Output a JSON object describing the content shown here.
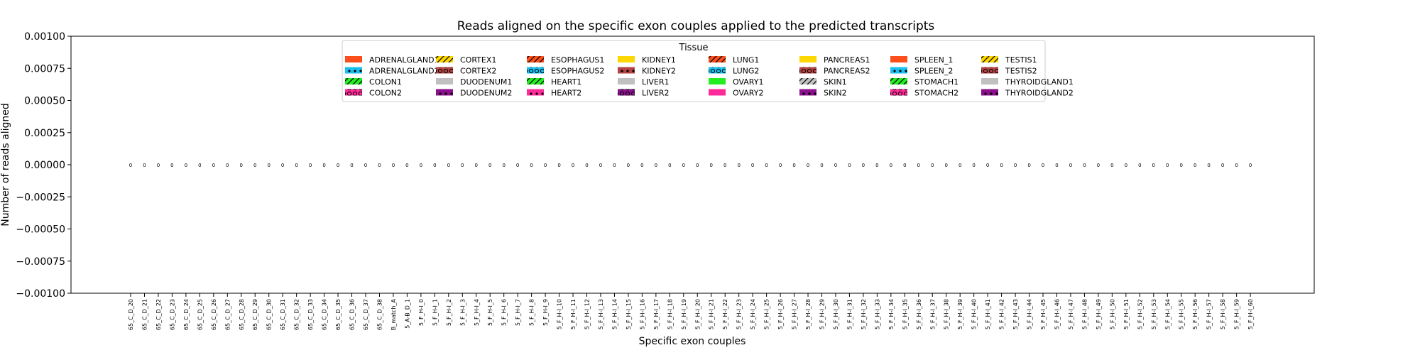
{
  "chart_data": {
    "type": "bar",
    "title": "Reads aligned on the specific exon couples applied to the predicted transcripts",
    "xlabel": "Specific exon couples",
    "ylabel": "Number of reads aligned",
    "ylim": [
      -0.001,
      0.001
    ],
    "yticks": [
      "0.00100",
      "0.00075",
      "0.00050",
      "0.00025",
      "0.00000",
      "−0.00025",
      "−0.00050",
      "−0.00075",
      "−0.00100"
    ],
    "ytick_values": [
      0.001,
      0.00075,
      0.0005,
      0.00025,
      0,
      -0.00025,
      -0.0005,
      -0.00075,
      -0.001
    ],
    "grid": false,
    "legend": {
      "title": "Tissue",
      "placement": "top-center",
      "entries": [
        {
          "name": "ADRENALGLAND1",
          "color": "#fc4f1b",
          "hatch": "none"
        },
        {
          "name": "ADRENALGLAND2",
          "color": "#19c0ef",
          "hatch": "dots"
        },
        {
          "name": "COLON1",
          "color": "#22ee22",
          "hatch": "slash"
        },
        {
          "name": "COLON2",
          "color": "#ff2a9a",
          "hatch": "circles"
        },
        {
          "name": "CORTEX1",
          "color": "#ffd700",
          "hatch": "slash"
        },
        {
          "name": "CORTEX2",
          "color": "#b44444",
          "hatch": "circles"
        },
        {
          "name": "DUODENUM1",
          "color": "#c0c0c0",
          "hatch": "none"
        },
        {
          "name": "DUODENUM2",
          "color": "#8b108b",
          "hatch": "dots"
        },
        {
          "name": "ESOPHAGUS1",
          "color": "#fc4f1b",
          "hatch": "slash"
        },
        {
          "name": "ESOPHAGUS2",
          "color": "#19c0ef",
          "hatch": "circles"
        },
        {
          "name": "HEART1",
          "color": "#22ee22",
          "hatch": "slash"
        },
        {
          "name": "HEART2",
          "color": "#ff2a9a",
          "hatch": "dots"
        },
        {
          "name": "KIDNEY1",
          "color": "#ffd700",
          "hatch": "none"
        },
        {
          "name": "KIDNEY2",
          "color": "#b44444",
          "hatch": "dots"
        },
        {
          "name": "LIVER1",
          "color": "#c0c0c0",
          "hatch": "none"
        },
        {
          "name": "LIVER2",
          "color": "#8b108b",
          "hatch": "circles"
        },
        {
          "name": "LUNG1",
          "color": "#fc4f1b",
          "hatch": "slash"
        },
        {
          "name": "LUNG2",
          "color": "#19c0ef",
          "hatch": "circles"
        },
        {
          "name": "OVARY1",
          "color": "#22ee22",
          "hatch": "none"
        },
        {
          "name": "OVARY2",
          "color": "#ff2a9a",
          "hatch": "none"
        },
        {
          "name": "PANCREAS1",
          "color": "#ffd700",
          "hatch": "none"
        },
        {
          "name": "PANCREAS2",
          "color": "#b44444",
          "hatch": "circles"
        },
        {
          "name": "SKIN1",
          "color": "#c0c0c0",
          "hatch": "slash"
        },
        {
          "name": "SKIN2",
          "color": "#8b108b",
          "hatch": "dots"
        },
        {
          "name": "SPLEEN_1",
          "color": "#fc4f1b",
          "hatch": "none"
        },
        {
          "name": "SPLEEN_2",
          "color": "#19c0ef",
          "hatch": "dots"
        },
        {
          "name": "STOMACH1",
          "color": "#22ee22",
          "hatch": "slash"
        },
        {
          "name": "STOMACH2",
          "color": "#ff2a9a",
          "hatch": "circles"
        },
        {
          "name": "TESTIS1",
          "color": "#ffd700",
          "hatch": "slash"
        },
        {
          "name": "TESTIS2",
          "color": "#b44444",
          "hatch": "circles"
        },
        {
          "name": "THYROIDGLAND1",
          "color": "#c0c0c0",
          "hatch": "none"
        },
        {
          "name": "THYROIDGLAND2",
          "color": "#8b108b",
          "hatch": "dots"
        }
      ]
    },
    "categories": [
      "65_C_D_20",
      "65_C_D_21",
      "65_C_D_22",
      "65_C_D_23",
      "65_C_D_24",
      "65_C_D_25",
      "65_C_D_26",
      "65_C_D_27",
      "65_C_D_28",
      "65_C_D_29",
      "65_C_D_30",
      "65_C_D_31",
      "65_C_D_32",
      "65_C_D_33",
      "65_C_D_34",
      "65_C_D_35",
      "65_C_D_36",
      "65_C_D_37",
      "65_C_D_38",
      "B_match_A",
      "5_A-B_D_1",
      "5_F_H-I_0",
      "5_F_H-I_1",
      "5_F_H-I_2",
      "5_F_H-I_3",
      "5_F_H-I_4",
      "5_F_H-I_5",
      "5_F_H-I_6",
      "5_F_H-I_7",
      "5_F_H-I_8",
      "5_F_H-I_9",
      "5_F_H-I_10",
      "5_F_H-I_11",
      "5_F_H-I_12",
      "5_F_H-I_13",
      "5_F_H-I_14",
      "5_F_H-I_15",
      "5_F_H-I_16",
      "5_F_H-I_17",
      "5_F_H-I_18",
      "5_F_H-I_19",
      "5_F_H-I_20",
      "5_F_H-I_21",
      "5_F_H-I_22",
      "5_F_H-I_23",
      "5_F_H-I_24",
      "5_F_H-I_25",
      "5_F_H-I_26",
      "5_F_H-I_27",
      "5_F_H-I_28",
      "5_F_H-I_29",
      "5_F_H-I_30",
      "5_F_H-I_31",
      "5_F_H-I_32",
      "5_F_H-I_33",
      "5_F_H-I_34",
      "5_F_H-I_35",
      "5_F_H-I_36",
      "5_F_H-I_37",
      "5_F_H-I_38",
      "5_F_H-I_39",
      "5_F_H-I_40",
      "5_F_H-I_41",
      "5_F_H-I_42",
      "5_F_H-I_43",
      "5_F_H-I_44",
      "5_F_H-I_45",
      "5_F_H-I_46",
      "5_F_H-I_47",
      "5_F_H-I_48",
      "5_F_H-I_49",
      "5_F_H-I_50",
      "5_F_H-I_51",
      "5_F_H-I_52",
      "5_F_H-I_53",
      "5_F_H-I_54",
      "5_F_H-I_55",
      "5_F_H-I_56",
      "5_F_H-I_57",
      "5_F_H-I_58",
      "5_F_H-I_59",
      "5_F_H-I_60"
    ],
    "values": [
      0,
      0,
      0,
      0,
      0,
      0,
      0,
      0,
      0,
      0,
      0,
      0,
      0,
      0,
      0,
      0,
      0,
      0,
      0,
      0,
      0,
      0,
      0,
      0,
      0,
      0,
      0,
      0,
      0,
      0,
      0,
      0,
      0,
      0,
      0,
      0,
      0,
      0,
      0,
      0,
      0,
      0,
      0,
      0,
      0,
      0,
      0,
      0,
      0,
      0,
      0,
      0,
      0,
      0,
      0,
      0,
      0,
      0,
      0,
      0,
      0,
      0,
      0,
      0,
      0,
      0,
      0,
      0,
      0,
      0,
      0,
      0,
      0,
      0,
      0,
      0,
      0,
      0,
      0,
      0,
      0,
      0
    ],
    "data_labels": [
      "0",
      "0",
      "0",
      "0",
      "0",
      "0",
      "0",
      "0",
      "0",
      "0",
      "0",
      "0",
      "0",
      "0",
      "0",
      "0",
      "0",
      "0",
      "0",
      "0",
      "0",
      "0",
      "0",
      "0",
      "0",
      "0",
      "0",
      "0",
      "0",
      "0",
      "0",
      "0",
      "0",
      "0",
      "0",
      "0",
      "0",
      "0",
      "0",
      "0",
      "0",
      "0",
      "0",
      "0",
      "0",
      "0",
      "0",
      "0",
      "0",
      "0",
      "0",
      "0",
      "0",
      "0",
      "0",
      "0",
      "0",
      "0",
      "0",
      "0",
      "0",
      "0",
      "0",
      "0",
      "0",
      "0",
      "0",
      "0",
      "0",
      "0",
      "0",
      "0",
      "0",
      "0",
      "0",
      "0",
      "0",
      "0",
      "0",
      "0",
      "0",
      "0"
    ]
  }
}
